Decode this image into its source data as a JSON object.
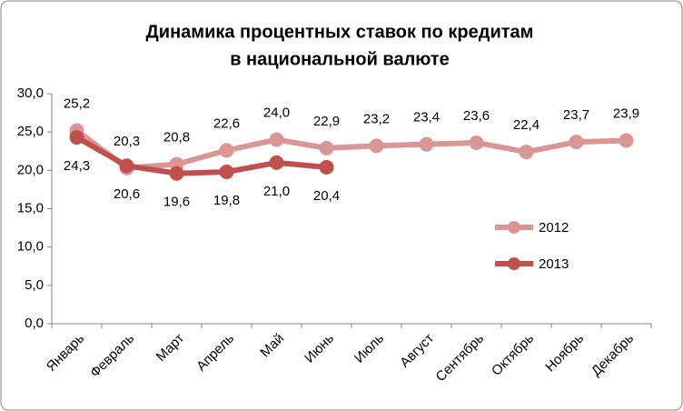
{
  "chart_data": {
    "type": "line",
    "title": [
      "Динамика процентных ставок по кредитам",
      "в национальной валюте"
    ],
    "categories": [
      "Январь",
      "Февраль",
      "Март",
      "Апрель",
      "Май",
      "Июнь",
      "Июль",
      "Август",
      "Сентябрь",
      "Октябрь",
      "Ноябрь",
      "Декабрь"
    ],
    "series": [
      {
        "name": "2012",
        "color": "#d99694",
        "label_side": "above",
        "values": [
          25.2,
          20.3,
          20.8,
          22.6,
          24.0,
          22.9,
          23.2,
          23.4,
          23.6,
          22.4,
          23.7,
          23.9
        ],
        "value_labels": [
          "25,2",
          "20,3",
          "20,8",
          "22,6",
          "24,0",
          "22,9",
          "23,2",
          "23,4",
          "23,6",
          "22,4",
          "23,7",
          "23,9"
        ]
      },
      {
        "name": "2013",
        "color": "#c0504d",
        "label_side": "below",
        "values": [
          24.3,
          20.6,
          19.6,
          19.8,
          21.0,
          20.4,
          null,
          null,
          null,
          null,
          null,
          null
        ],
        "value_labels": [
          "24,3",
          "20,6",
          "19,6",
          "19,8",
          "21,0",
          "20,4",
          null,
          null,
          null,
          null,
          null,
          null
        ]
      }
    ],
    "ylim": [
      0,
      30
    ],
    "yticks": [
      {
        "value": 0,
        "label": "0,0"
      },
      {
        "value": 5,
        "label": "5,0"
      },
      {
        "value": 10,
        "label": "10,0"
      },
      {
        "value": 15,
        "label": "15,0"
      },
      {
        "value": 20,
        "label": "20,0"
      },
      {
        "value": 25,
        "label": "25,0"
      },
      {
        "value": 30,
        "label": "30,0"
      }
    ],
    "grid": false,
    "legend": "right"
  }
}
